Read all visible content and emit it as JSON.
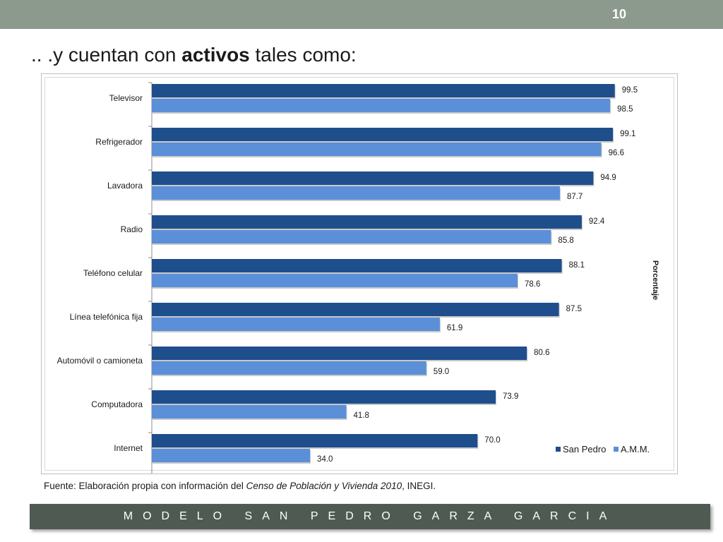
{
  "slide": {
    "number": "10",
    "title_pre": ".. .y cuentan con ",
    "title_bold": "activos",
    "title_post": " tales como:",
    "source_pre": "Fuente: Elaboración propia con información del ",
    "source_italic": "Censo de Población y Vivienda  2010",
    "source_post": ", INEGI.",
    "footer": "MODELO SAN PEDRO GARZA GARCIA"
  },
  "colors": {
    "top_bar": "#8c9a8e",
    "footer_bar": "#4f5b52",
    "san_pedro": "#1f4e8c",
    "amm": "#5b8fd8"
  },
  "chart_data": {
    "type": "bar",
    "orientation": "horizontal",
    "categories": [
      "Televisor",
      "Refrigerador",
      "Lavadora",
      "Radio",
      "Teléfono celular",
      "Línea telefónica fija",
      "Automóvil o camioneta",
      "Computadora",
      "Internet"
    ],
    "series": [
      {
        "name": "San Pedro",
        "values": [
          99.5,
          99.1,
          94.9,
          92.4,
          88.1,
          87.5,
          80.6,
          73.9,
          70.0
        ],
        "labels": [
          "99.5",
          "99.1",
          "94.9",
          "92.4",
          "88.1",
          "87.5",
          "80.6",
          "73.9",
          "70.0"
        ],
        "color": "#1f4e8c"
      },
      {
        "name": "A.M.M.",
        "values": [
          98.5,
          96.6,
          87.7,
          85.8,
          78.6,
          61.9,
          59.0,
          41.8,
          34.0
        ],
        "labels": [
          "98.5",
          "96.6",
          "87.7",
          "85.8",
          "78.6",
          "61.9",
          "59.0",
          "41.8",
          "34.0"
        ],
        "color": "#5b8fd8"
      }
    ],
    "axis_title": "Porcentaje",
    "xlim": [
      0,
      100
    ],
    "grid": false,
    "legend_position": "bottom-right"
  }
}
